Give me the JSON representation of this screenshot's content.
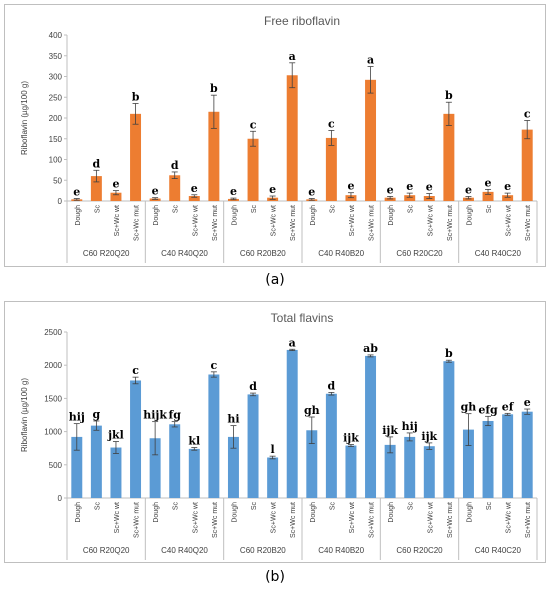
{
  "chart_data": [
    {
      "type": "bar",
      "panel_label": "(a)",
      "title": "Free riboflavin",
      "ylabel": "Riboflavin (µg/100 g)",
      "ylim": [
        0,
        400
      ],
      "yticks": [
        0,
        50,
        100,
        150,
        200,
        250,
        300,
        350,
        400
      ],
      "color": "#ED7D31",
      "groups": [
        "C60 R20Q20",
        "C40 R40Q20",
        "C60 R20B20",
        "C40 R40B20",
        "C60 R20C20",
        "C40 R40C20"
      ],
      "categories": [
        "Dough",
        "Sc",
        "Sc+Wc wt",
        "Sc+Wc mut"
      ],
      "values": [
        [
          4,
          60,
          20,
          210
        ],
        [
          6,
          62,
          12,
          215
        ],
        [
          5,
          150,
          8,
          303
        ],
        [
          4,
          152,
          14,
          292
        ],
        [
          8,
          14,
          12,
          210
        ],
        [
          8,
          22,
          14,
          172
        ]
      ],
      "errors": [
        [
          2,
          14,
          5,
          25
        ],
        [
          2,
          8,
          3,
          40
        ],
        [
          2,
          18,
          4,
          30
        ],
        [
          2,
          18,
          6,
          32
        ],
        [
          3,
          5,
          6,
          28
        ],
        [
          3,
          6,
          5,
          22
        ]
      ],
      "letters": [
        [
          "e",
          "d",
          "e",
          "b"
        ],
        [
          "e",
          "d",
          "e",
          "b"
        ],
        [
          "e",
          "c",
          "e",
          "a"
        ],
        [
          "e",
          "c",
          "e",
          "a"
        ],
        [
          "e",
          "e",
          "e",
          "b"
        ],
        [
          "e",
          "e",
          "e",
          "c"
        ]
      ]
    },
    {
      "type": "bar",
      "panel_label": "(b)",
      "title": "Total flavins",
      "ylabel": "Riboflavin (µg/100 g)",
      "ylim": [
        0,
        2500
      ],
      "yticks": [
        0,
        500,
        1000,
        1500,
        2000,
        2500
      ],
      "color": "#5B9BD5",
      "groups": [
        "C60 R20Q20",
        "C40 R40Q20",
        "C60 R20B20",
        "C40 R40B20",
        "C60 R20C20",
        "C40 R40C20"
      ],
      "categories": [
        "Dough",
        "Sc",
        "Sc+Wc wt",
        "Sc+Wc mut"
      ],
      "values": [
        [
          920,
          1090,
          760,
          1770
        ],
        [
          900,
          1110,
          740,
          1860
        ],
        [
          920,
          1560,
          610,
          2230
        ],
        [
          1020,
          1570,
          790,
          2140
        ],
        [
          800,
          920,
          780,
          2060
        ],
        [
          1030,
          1160,
          1260,
          1300
        ]
      ],
      "errors": [
        [
          200,
          70,
          90,
          50
        ],
        [
          250,
          40,
          20,
          40
        ],
        [
          170,
          20,
          20,
          10
        ],
        [
          200,
          20,
          15,
          15
        ],
        [
          120,
          60,
          50,
          15
        ],
        [
          240,
          70,
          15,
          40
        ]
      ],
      "letters": [
        [
          "hij",
          "g",
          "jkl",
          "c"
        ],
        [
          "hijk",
          "fg",
          "kl",
          "c"
        ],
        [
          "hi",
          "d",
          "l",
          "a"
        ],
        [
          "gh",
          "d",
          "ijk",
          "ab"
        ],
        [
          "ijk",
          "hij",
          "ijk",
          "b"
        ],
        [
          "gh",
          "efg",
          "ef",
          "e"
        ]
      ]
    }
  ]
}
